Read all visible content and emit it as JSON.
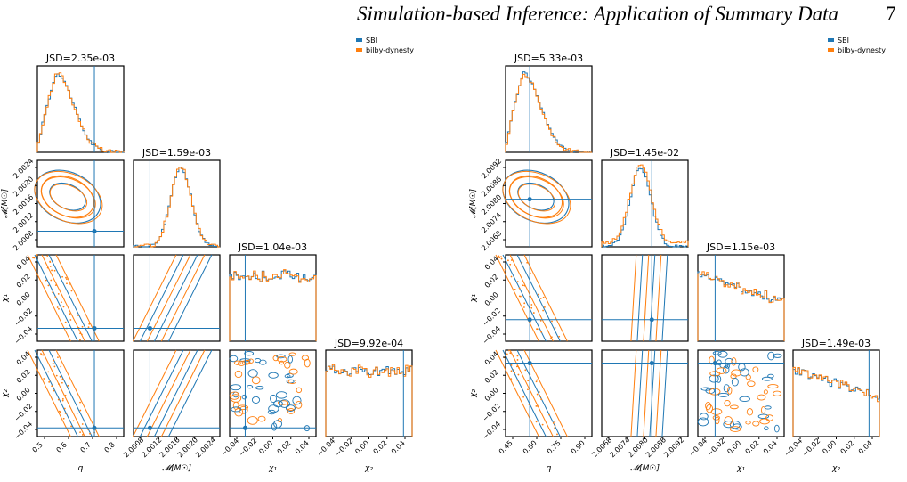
{
  "header": {
    "title": "Simulation-based Inference: Application of Summary Data",
    "page_number": "7"
  },
  "colors": {
    "sbi": "#1f77b4",
    "bilby": "#ff7f0e",
    "axis": "#000000"
  },
  "figures": [
    {
      "legend": [
        "SBI",
        "bilby-dynesty"
      ],
      "jsd": [
        "JSD=2.35e-03",
        "JSD=1.59e-03",
        "JSD=1.04e-03",
        "JSD=9.92e-04"
      ],
      "labels": {
        "x": [
          "q",
          "𝓜[M☉]",
          "χ₁",
          "χ₂"
        ],
        "y": [
          "𝓜[M☉]",
          "χ₁",
          "χ₂"
        ]
      },
      "ticks": {
        "x": [
          [
            "0.5",
            "0.6",
            "0.7",
            "0.8"
          ],
          [
            "2.0008",
            "2.0012",
            "2.0016",
            "2.0020",
            "2.0024"
          ],
          [
            "−0.04",
            "−0.02",
            "0.00",
            "0.02",
            "0.04"
          ],
          [
            "−0.04",
            "−0.02",
            "0.00",
            "0.02",
            "0.04"
          ]
        ],
        "y": [
          [
            "2.0024",
            "2.0020",
            "2.0016",
            "2.0012",
            "2.0008"
          ],
          [
            "0.04",
            "0.02",
            "0.00",
            "−0.02",
            "−0.04"
          ],
          [
            "0.04",
            "0.02",
            "0.00",
            "−0.02",
            "−0.04"
          ]
        ]
      }
    },
    {
      "legend": [
        "SBI",
        "bilby-dynesty"
      ],
      "jsd": [
        "JSD=5.33e-03",
        "JSD=1.45e-02",
        "JSD=1.15e-03",
        "JSD=1.49e-03"
      ],
      "labels": {
        "x": [
          "q",
          "𝓜[M☉]",
          "χ₁",
          "χ₂"
        ],
        "y": [
          "𝓜[M☉]",
          "χ₁",
          "χ₂"
        ]
      },
      "ticks": {
        "x": [
          [
            "0.45",
            "0.60",
            "0.75",
            "0.90"
          ],
          [
            "2.0068",
            "2.0074",
            "2.0080",
            "2.0086",
            "2.0092"
          ],
          [
            "−0.04",
            "−0.02",
            "0.00",
            "0.02",
            "0.04"
          ],
          [
            "−0.04",
            "−0.02",
            "0.00",
            "0.02",
            "0.04"
          ]
        ],
        "y": [
          [
            "2.0092",
            "2.0086",
            "2.0080",
            "2.0074",
            "2.0068"
          ],
          [
            "0.04",
            "0.02",
            "0.00",
            "−0.02",
            "−0.04"
          ],
          [
            "0.04",
            "0.02",
            "0.00",
            "−0.02",
            "−0.04"
          ]
        ]
      }
    }
  ]
}
